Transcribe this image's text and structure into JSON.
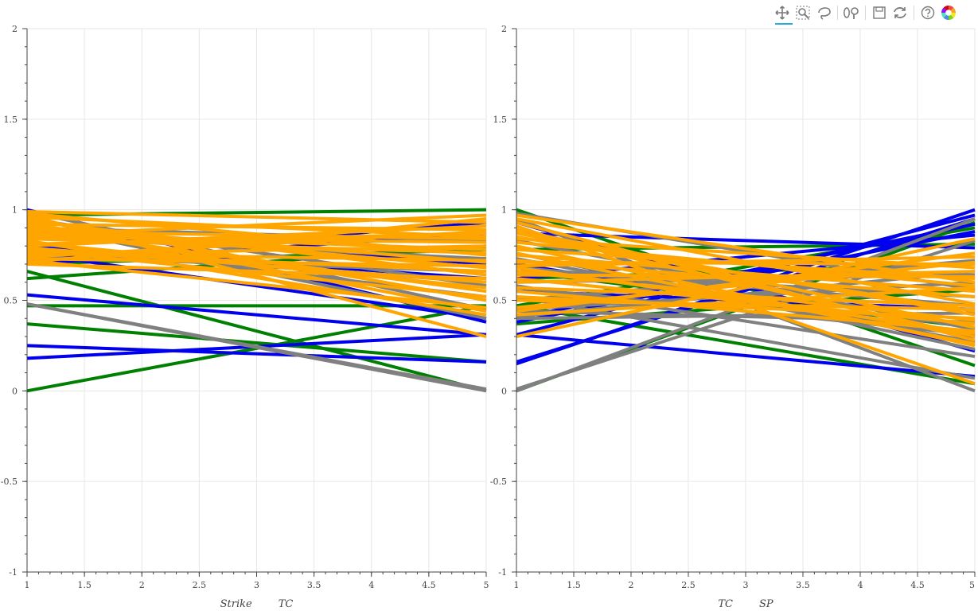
{
  "toolbar": {
    "tools": [
      {
        "name": "pan-tool-icon",
        "active": true
      },
      {
        "name": "box-zoom-tool-icon",
        "active": false
      },
      {
        "name": "lasso-select-tool-icon",
        "active": false
      },
      {
        "name": "wheel-zoom-tool-icon",
        "active": false
      },
      {
        "name": "save-tool-icon",
        "active": false
      },
      {
        "name": "reset-tool-icon",
        "active": false
      },
      {
        "name": "help-tool-icon",
        "active": false
      },
      {
        "name": "bokeh-logo-icon",
        "active": false
      }
    ]
  },
  "colors": {
    "blue": "#0000ee",
    "green": "#008000",
    "gray": "#808080",
    "orange": "#ffa500",
    "grid": "#e6e6e6",
    "axis": "#444444"
  },
  "chart_data": [
    {
      "type": "line",
      "xlabel": "Strike        TC",
      "xlim": [
        1,
        5
      ],
      "ylim": [
        -1,
        2
      ],
      "x_ticks": [
        "1",
        "1.5",
        "2",
        "2.5",
        "3",
        "3.5",
        "4",
        "4.5",
        "5"
      ],
      "y_ticks": [
        "-1",
        "-0.5",
        "0",
        "0.5",
        "1",
        "1.5",
        "2"
      ],
      "grid": true,
      "series": [
        {
          "color": "green",
          "lines": [
            [
              0.0,
              0.47
            ],
            [
              0.37,
              0.16
            ],
            [
              0.66,
              0.0
            ],
            [
              0.47,
              0.47
            ],
            [
              0.62,
              0.8
            ],
            [
              0.97,
              1.0
            ],
            [
              0.7,
              0.78
            ]
          ]
        },
        {
          "color": "blue",
          "lines": [
            [
              0.53,
              0.31
            ],
            [
              0.25,
              0.16
            ],
            [
              0.18,
              0.31
            ],
            [
              0.7,
              0.87
            ],
            [
              0.76,
              0.4
            ],
            [
              1.0,
              0.38
            ],
            [
              0.72,
              0.93
            ],
            [
              0.88,
              0.7
            ],
            [
              0.8,
              0.62
            ]
          ]
        },
        {
          "color": "gray",
          "lines": [
            [
              0.48,
              0.0
            ],
            [
              0.48,
              0.01
            ],
            [
              0.82,
              0.52
            ],
            [
              0.95,
              0.58
            ],
            [
              0.9,
              0.83
            ],
            [
              0.78,
              0.6
            ],
            [
              0.74,
              0.66
            ],
            [
              0.85,
              0.73
            ],
            [
              0.99,
              0.45
            ],
            [
              0.92,
              0.4
            ]
          ]
        },
        {
          "color": "orange",
          "lines": [
            [
              0.97,
              0.3
            ],
            [
              0.93,
              0.44
            ],
            [
              0.9,
              0.68
            ],
            [
              0.88,
              0.84
            ],
            [
              0.86,
              0.97
            ],
            [
              0.84,
              0.76
            ],
            [
              0.82,
              0.57
            ],
            [
              0.8,
              0.91
            ],
            [
              0.78,
              0.52
            ],
            [
              0.76,
              0.72
            ],
            [
              0.74,
              0.88
            ],
            [
              0.72,
              0.46
            ],
            [
              0.7,
              0.62
            ],
            [
              0.98,
              0.75
            ],
            [
              0.96,
              0.85
            ],
            [
              0.94,
              0.64
            ],
            [
              0.92,
              0.89
            ],
            [
              0.75,
              0.8
            ],
            [
              0.73,
              0.69
            ],
            [
              0.71,
              0.95
            ],
            [
              0.87,
              0.78
            ],
            [
              0.83,
              0.42
            ],
            [
              0.79,
              0.6
            ],
            [
              0.85,
              0.82
            ],
            [
              0.89,
              0.55
            ],
            [
              0.91,
              0.71
            ],
            [
              0.81,
              0.87
            ],
            [
              0.77,
              0.66
            ],
            [
              0.95,
              0.5
            ],
            [
              0.99,
              0.93
            ]
          ]
        }
      ]
    },
    {
      "type": "line",
      "xlabel": "TC        SP",
      "xlim": [
        1,
        5
      ],
      "ylim": [
        -1,
        2
      ],
      "x_ticks": [
        "1",
        "1.5",
        "2",
        "2.5",
        "3",
        "3.5",
        "4",
        "4.5",
        "5"
      ],
      "y_ticks": [
        "-1",
        "-0.5",
        "0",
        "0.5",
        "1",
        "1.5",
        "2"
      ],
      "grid": true,
      "series": [
        {
          "color": "green",
          "lines": [
            [
              1.0,
              0.14
            ],
            [
              0.0,
              0.93
            ],
            [
              0.47,
              0.04
            ],
            [
              0.62,
              0.7
            ],
            [
              0.78,
              0.81
            ],
            [
              0.66,
              0.35
            ],
            [
              0.37,
              0.56
            ],
            [
              0.47,
              0.9
            ]
          ]
        },
        {
          "color": "blue",
          "lines": [
            [
              0.15,
              1.0
            ],
            [
              0.31,
              0.97
            ],
            [
              0.31,
              0.08
            ],
            [
              0.93,
              0.22
            ],
            [
              0.4,
              0.92
            ],
            [
              0.38,
              0.88
            ],
            [
              0.87,
              0.79
            ],
            [
              0.16,
              0.95
            ],
            [
              0.7,
              0.3
            ],
            [
              0.62,
              0.86
            ],
            [
              0.55,
              0.45
            ]
          ]
        },
        {
          "color": "gray",
          "lines": [
            [
              0.0,
              0.95
            ],
            [
              0.01,
              0.83
            ],
            [
              0.52,
              0.07
            ],
            [
              0.58,
              0.19
            ],
            [
              0.83,
              0.34
            ],
            [
              0.6,
              0.64
            ],
            [
              0.66,
              0.52
            ],
            [
              0.73,
              0.27
            ],
            [
              0.45,
              0.6
            ],
            [
              0.4,
              0.43
            ],
            [
              0.98,
              0.56
            ],
            [
              0.44,
              0.38
            ],
            [
              0.5,
              0.72
            ],
            [
              0.95,
              0.0
            ],
            [
              0.57,
              0.31
            ],
            [
              0.68,
              0.47
            ],
            [
              0.41,
              0.66
            ],
            [
              0.76,
              0.23
            ]
          ]
        },
        {
          "color": "orange",
          "lines": [
            [
              0.3,
              0.84
            ],
            [
              0.44,
              0.76
            ],
            [
              0.68,
              0.32
            ],
            [
              0.84,
              0.68
            ],
            [
              0.97,
              0.6
            ],
            [
              0.76,
              0.26
            ],
            [
              0.57,
              0.47
            ],
            [
              0.91,
              0.04
            ],
            [
              0.52,
              0.4
            ],
            [
              0.72,
              0.52
            ],
            [
              0.88,
              0.3
            ],
            [
              0.46,
              0.71
            ],
            [
              0.62,
              0.37
            ],
            [
              0.75,
              0.55
            ],
            [
              0.85,
              0.44
            ],
            [
              0.64,
              0.63
            ],
            [
              0.89,
              0.35
            ],
            [
              0.69,
              0.74
            ],
            [
              0.8,
              0.25
            ],
            [
              0.95,
              0.48
            ],
            [
              0.42,
              0.57
            ],
            [
              0.6,
              0.66
            ],
            [
              0.87,
              0.42
            ],
            [
              0.55,
              0.33
            ],
            [
              0.71,
              0.7
            ],
            [
              0.82,
              0.58
            ],
            [
              0.5,
              0.45
            ],
            [
              0.66,
              0.39
            ],
            [
              0.78,
              0.62
            ],
            [
              0.93,
              0.28
            ]
          ]
        }
      ]
    }
  ]
}
